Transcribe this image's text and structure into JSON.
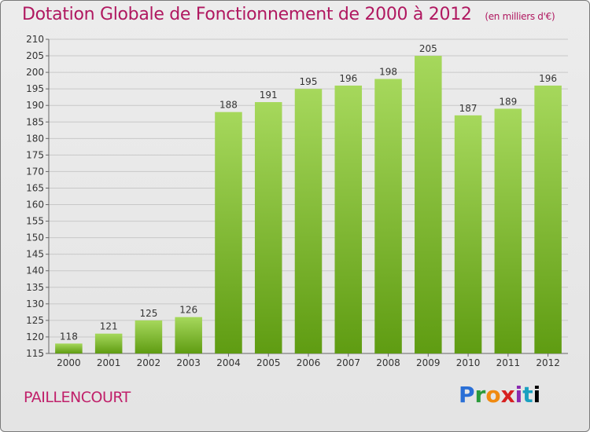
{
  "header": {
    "title": "Dotation Globale de Fonctionnement de 2000 à 2012",
    "subtitle": "(en milliers d'€)"
  },
  "footer": {
    "commune": "PAILLENCOURT",
    "logo": "Proxiti"
  },
  "colors": {
    "bar_top": "#a4d65a",
    "bar_bottom": "#62a014",
    "title": "#b01860"
  },
  "chart_data": {
    "type": "bar",
    "title": "Dotation Globale de Fonctionnement de 2000 à 2012",
    "subtitle": "(en milliers d'€)",
    "categories": [
      "2000",
      "2001",
      "2002",
      "2003",
      "2004",
      "2005",
      "2006",
      "2007",
      "2008",
      "2009",
      "2010",
      "2011",
      "2012"
    ],
    "values": [
      118,
      121,
      125,
      126,
      188,
      191,
      195,
      196,
      198,
      205,
      187,
      189,
      196
    ],
    "ylim": [
      115,
      210
    ],
    "ytick_step": 5,
    "grid": true,
    "legend": "none"
  }
}
